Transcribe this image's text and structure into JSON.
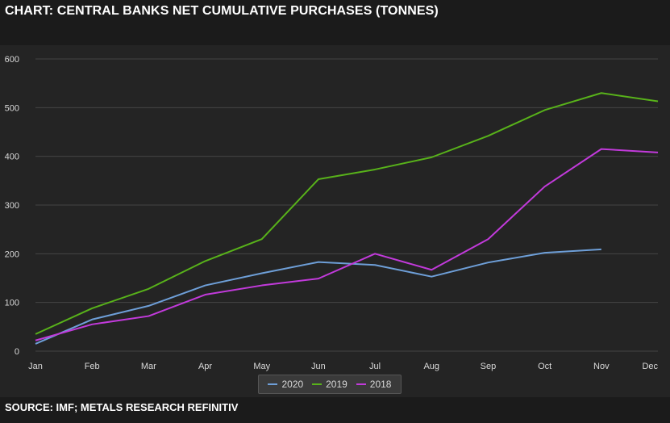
{
  "title": "CHART: CENTRAL BANKS NET CUMULATIVE PURCHASES (TONNES)",
  "source": "SOURCE: IMF; METALS RESEARCH REFINITIV",
  "colors": {
    "background": "#1b1b1b",
    "plot_background": "#242424",
    "grid": "#444444",
    "axis_text": "#d8d8d8"
  },
  "chart_data": {
    "type": "line",
    "categories": [
      "Jan",
      "Feb",
      "Mar",
      "Apr",
      "May",
      "Jun",
      "Jul",
      "Aug",
      "Sep",
      "Oct",
      "Nov",
      "Dec"
    ],
    "ylim": [
      0,
      600
    ],
    "yticks": [
      0,
      100,
      200,
      300,
      400,
      500,
      600
    ],
    "grid": true,
    "legend_position": "bottom-center",
    "series": [
      {
        "name": "2020",
        "color": "#6e9fd8",
        "values": [
          15,
          65,
          93,
          135,
          160,
          183,
          177,
          153,
          182,
          202,
          209,
          null
        ]
      },
      {
        "name": "2019",
        "color": "#58b21a",
        "values": [
          35,
          88,
          128,
          185,
          230,
          353,
          373,
          398,
          442,
          495,
          530,
          513
        ]
      },
      {
        "name": "2018",
        "color": "#c23adb",
        "values": [
          22,
          55,
          72,
          116,
          135,
          149,
          200,
          167,
          230,
          338,
          415,
          408
        ]
      }
    ]
  }
}
